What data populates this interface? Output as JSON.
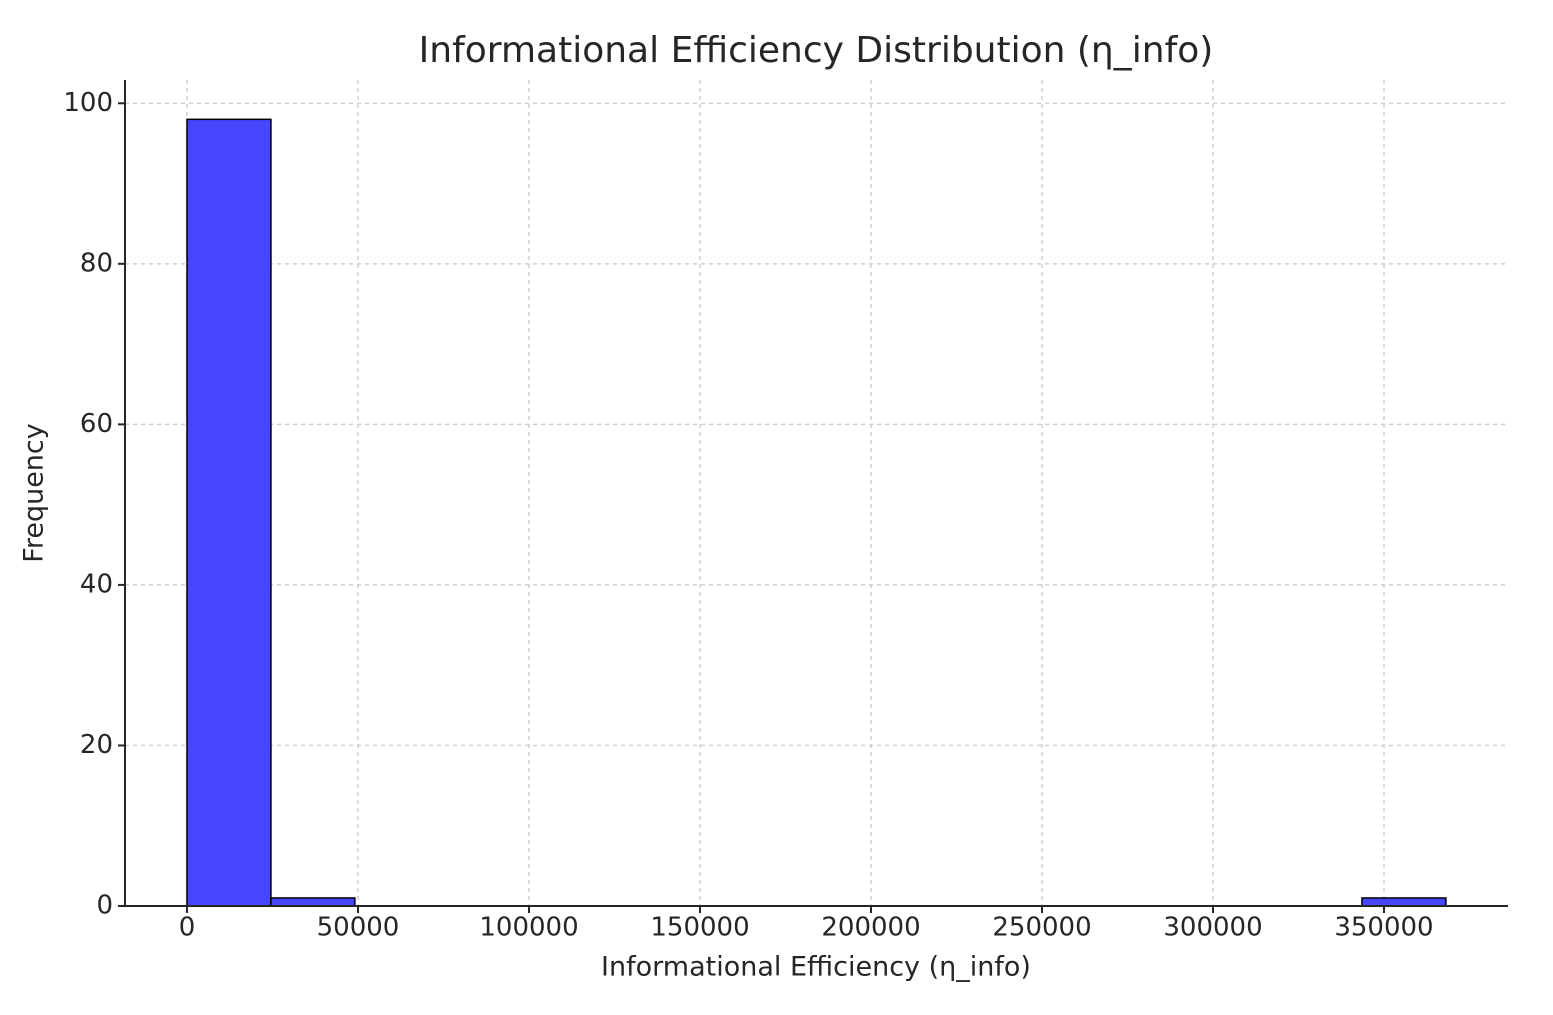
{
  "chart_data": {
    "type": "histogram",
    "title": "Informational Efficiency Distribution (η_info)",
    "x_label": "Informational Efficiency (η_info)",
    "y_label": "Frequency",
    "bins": [
      0,
      24540,
      49080,
      73620,
      98160,
      122700,
      147240,
      171780,
      196320,
      220860,
      245400,
      269940,
      294480,
      319020,
      343560,
      368100
    ],
    "values": [
      98,
      1,
      0,
      0,
      0,
      0,
      0,
      0,
      0,
      0,
      0,
      0,
      0,
      0,
      1
    ],
    "color": "#4646ff",
    "edgecolor": "#000000",
    "xlim": [
      -18130,
      386260
    ],
    "ylim": [
      0,
      102.9
    ],
    "xticks": [
      0,
      50000,
      100000,
      150000,
      200000,
      250000,
      300000,
      350000
    ],
    "yticks": [
      0,
      20,
      40,
      60,
      80,
      100
    ],
    "grid": true
  }
}
